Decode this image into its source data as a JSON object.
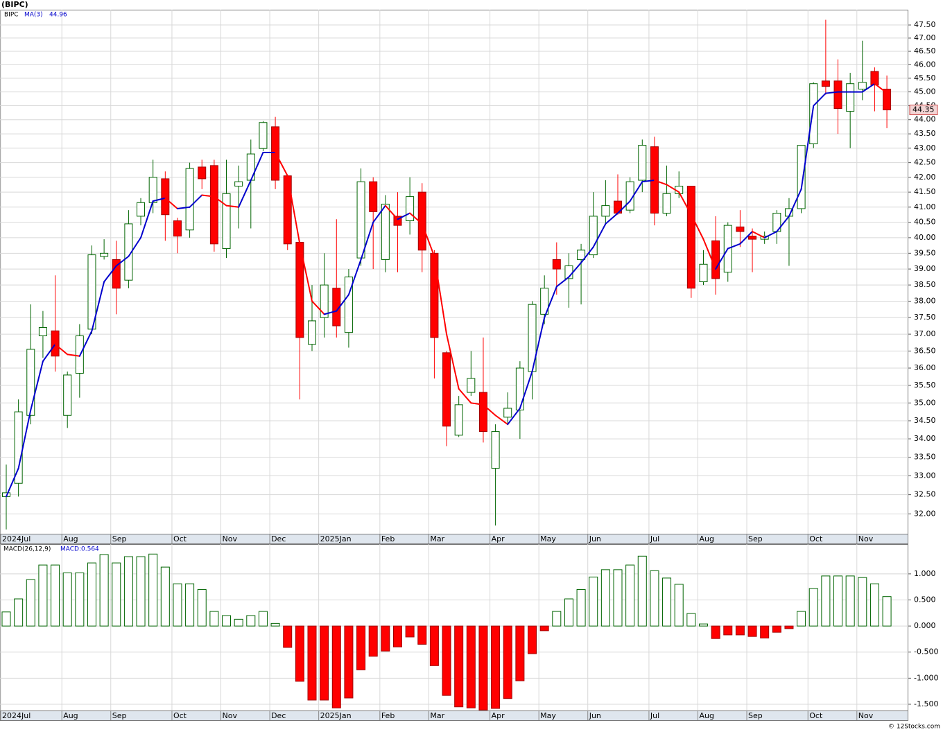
{
  "chart_data": [
    {
      "type": "candlestick",
      "title": "(BIPC)",
      "symbol": "BIPC",
      "log_scale": true,
      "grid": true,
      "up_color": "#006400",
      "down_color": "#ff0000",
      "ylim": [
        31.49,
        48.09
      ],
      "yticks": [
        {
          "value": 32,
          "label": "32.00"
        },
        {
          "value": 32.5,
          "label": "32.50"
        },
        {
          "value": 33,
          "label": "33.00"
        },
        {
          "value": 33.5,
          "label": "33.50"
        },
        {
          "value": 34,
          "label": "34.00"
        },
        {
          "value": 34.5,
          "label": "34.50"
        },
        {
          "value": 35,
          "label": "35.00"
        },
        {
          "value": 35.5,
          "label": "35.50"
        },
        {
          "value": 36,
          "label": "36.00"
        },
        {
          "value": 36.5,
          "label": "36.50"
        },
        {
          "value": 37,
          "label": "37.00"
        },
        {
          "value": 37.5,
          "label": "37.50"
        },
        {
          "value": 38,
          "label": "38.00"
        },
        {
          "value": 38.5,
          "label": "38.50"
        },
        {
          "value": 39,
          "label": "39.00"
        },
        {
          "value": 39.5,
          "label": "39.50"
        },
        {
          "value": 40,
          "label": "40.00"
        },
        {
          "value": 40.5,
          "label": "40.50"
        },
        {
          "value": 41,
          "label": "41.00"
        },
        {
          "value": 41.5,
          "label": "41.50"
        },
        {
          "value": 42,
          "label": "42.00"
        },
        {
          "value": 42.5,
          "label": "42.50"
        },
        {
          "value": 43,
          "label": "43.00"
        },
        {
          "value": 43.5,
          "label": "43.50"
        },
        {
          "value": 44,
          "label": "44.00"
        },
        {
          "value": 44.5,
          "label": "44.50"
        },
        {
          "value": 45,
          "label": "45.00"
        },
        {
          "value": 45.5,
          "label": "45.50"
        },
        {
          "value": 46,
          "label": "46.00"
        },
        {
          "value": 46.5,
          "label": "46.50"
        },
        {
          "value": 47,
          "label": "47.00"
        },
        {
          "value": 47.5,
          "label": "47.50"
        }
      ],
      "xticks": [
        {
          "value": 0,
          "label": "2024Jul"
        },
        {
          "value": 5,
          "label": "Aug"
        },
        {
          "value": 9,
          "label": "Sep"
        },
        {
          "value": 14,
          "label": "Oct"
        },
        {
          "value": 18,
          "label": "Nov"
        },
        {
          "value": 22,
          "label": "Dec"
        },
        {
          "value": 26,
          "label": "2025Jan"
        },
        {
          "value": 31,
          "label": "Feb"
        },
        {
          "value": 35,
          "label": "Mar"
        },
        {
          "value": 40,
          "label": "Apr"
        },
        {
          "value": 44,
          "label": "May"
        },
        {
          "value": 48,
          "label": "Jun"
        },
        {
          "value": 53,
          "label": "Jul"
        },
        {
          "value": 57,
          "label": "Aug"
        },
        {
          "value": 61,
          "label": "Sep"
        },
        {
          "value": 66,
          "label": "Oct"
        },
        {
          "value": 70,
          "label": "Nov"
        }
      ],
      "open": [
        32.45,
        32.8,
        34.65,
        36.95,
        37.1,
        34.65,
        35.85,
        37.15,
        39.4,
        39.3,
        38.65,
        40.7,
        41.15,
        41.95,
        40.55,
        40.25,
        42.35,
        42.4,
        39.65,
        41.7,
        41.9,
        42.99,
        43.75,
        42.05,
        39.85,
        36.7,
        37.5,
        38.4,
        37.05,
        39.35,
        41.85,
        39.3,
        40.7,
        40.55,
        41.5,
        39.5,
        36.45,
        34.1,
        35.3,
        35.3,
        33.2,
        34.6,
        34.8,
        35.9,
        37.6,
        39.3,
        38.7,
        39.3,
        39.45,
        40.7,
        41.2,
        40.9,
        41.9,
        43.05,
        40.8,
        41.45,
        41.7,
        38.6,
        39.9,
        38.9,
        40.35,
        40.05,
        39.95,
        40.2,
        40.7,
        40.95,
        43.15,
        45.4,
        45.4,
        44.3,
        45.1,
        45.75,
        45.1
      ],
      "high": [
        33.3,
        35.1,
        37.9,
        37.7,
        38.8,
        35.9,
        37.3,
        39.75,
        39.95,
        39.9,
        40.9,
        41.3,
        42.6,
        42.2,
        40.65,
        42.5,
        42.6,
        42.6,
        42.6,
        42.4,
        43.3,
        43.95,
        44.1,
        42.05,
        39.85,
        38.5,
        39.5,
        40.6,
        39.0,
        42.3,
        42.0,
        41.4,
        41.5,
        42.0,
        41.8,
        39.6,
        36.5,
        35.2,
        36.5,
        36.9,
        34.4,
        35.3,
        36.2,
        38.0,
        38.8,
        39.85,
        39.5,
        39.8,
        41.5,
        41.9,
        42.1,
        42.0,
        43.3,
        43.4,
        42.4,
        42.2,
        41.7,
        39.6,
        40.7,
        40.5,
        40.9,
        40.3,
        40.2,
        40.9,
        41.3,
        43.1,
        45.35,
        47.7,
        46.2,
        45.7,
        46.9,
        45.9,
        45.6
      ],
      "low": [
        31.6,
        32.45,
        34.4,
        36.3,
        35.9,
        34.3,
        35.15,
        37.0,
        39.3,
        37.6,
        38.4,
        40.4,
        40.8,
        39.9,
        39.5,
        40.0,
        41.6,
        39.55,
        39.35,
        40.3,
        40.3,
        42.9,
        41.6,
        39.6,
        35.1,
        36.5,
        36.9,
        36.9,
        36.6,
        39.1,
        39.0,
        38.9,
        38.9,
        40.1,
        38.9,
        35.7,
        33.8,
        34.05,
        35.2,
        33.9,
        31.7,
        34.4,
        34.0,
        35.1,
        37.3,
        38.2,
        37.8,
        37.9,
        39.35,
        40.4,
        40.75,
        40.8,
        41.5,
        40.4,
        40.7,
        41.3,
        38.1,
        38.5,
        38.2,
        38.6,
        39.7,
        38.9,
        39.8,
        39.8,
        39.1,
        40.8,
        43.0,
        44.9,
        43.5,
        43.0,
        44.7,
        44.3,
        43.7
      ],
      "close": [
        32.55,
        34.75,
        36.55,
        37.2,
        36.35,
        35.8,
        36.95,
        39.45,
        39.5,
        38.4,
        40.45,
        41.15,
        42.0,
        40.75,
        40.05,
        42.3,
        41.95,
        39.8,
        41.45,
        41.85,
        42.8,
        43.9,
        41.9,
        39.8,
        36.9,
        37.4,
        38.5,
        37.25,
        38.75,
        41.85,
        40.85,
        41.1,
        40.4,
        41.35,
        39.6,
        36.9,
        34.35,
        34.95,
        35.7,
        34.2,
        34.2,
        34.85,
        36.0,
        37.9,
        38.4,
        39.0,
        39.1,
        39.6,
        40.7,
        41.05,
        40.8,
        41.85,
        43.1,
        40.8,
        41.45,
        41.7,
        38.4,
        39.15,
        38.7,
        40.4,
        40.2,
        39.95,
        40.05,
        40.8,
        40.95,
        43.1,
        45.3,
        45.2,
        44.4,
        45.3,
        45.35,
        45.25,
        44.35
      ],
      "ma": {
        "name": "MA(3)",
        "up_color": "#0000cc",
        "down_color": "#ff0000",
        "values": [
          32.45,
          33.2,
          34.8,
          36.2,
          36.7,
          36.4,
          36.35,
          37.1,
          38.6,
          39.1,
          39.4,
          40.0,
          41.2,
          41.3,
          40.95,
          41.0,
          41.4,
          41.35,
          41.05,
          41.0,
          41.9,
          42.85,
          42.85,
          42.05,
          39.8,
          38.0,
          37.6,
          37.7,
          38.2,
          39.3,
          40.5,
          41.05,
          40.6,
          40.8,
          40.45,
          39.4,
          37.0,
          35.4,
          35.0,
          34.95,
          34.65,
          34.4,
          34.85,
          35.9,
          37.5,
          38.45,
          38.75,
          39.2,
          39.7,
          40.45,
          40.8,
          41.2,
          41.85,
          41.9,
          41.75,
          41.5,
          40.75,
          39.95,
          39.0,
          39.65,
          39.8,
          40.2,
          40.0,
          40.2,
          40.7,
          41.6,
          44.5,
          44.95,
          45.0,
          45.0,
          45.0,
          45.3,
          44.96
        ]
      }
    },
    {
      "type": "bar",
      "title": "MACD(26,12,9)",
      "current_prefix": "MACD:",
      "grid": true,
      "up_color": "#006400",
      "down_color": "#ff0000",
      "ylim": [
        -1.62,
        1.57
      ],
      "yticks": [
        {
          "value": -1.5,
          "label": "-1.500"
        },
        {
          "value": -1,
          "label": "-1.000"
        },
        {
          "value": -0.5,
          "label": "-0.500"
        },
        {
          "value": 0,
          "label": "0.000"
        },
        {
          "value": 0.5,
          "label": "0.500"
        },
        {
          "value": 1,
          "label": "1.000"
        }
      ],
      "xticks": [
        {
          "value": 0,
          "label": "2024Jul"
        },
        {
          "value": 5,
          "label": "Aug"
        },
        {
          "value": 9,
          "label": "Sep"
        },
        {
          "value": 14,
          "label": "Oct"
        },
        {
          "value": 18,
          "label": "Nov"
        },
        {
          "value": 22,
          "label": "Dec"
        },
        {
          "value": 26,
          "label": "2025Jan"
        },
        {
          "value": 31,
          "label": "Feb"
        },
        {
          "value": 35,
          "label": "Mar"
        },
        {
          "value": 40,
          "label": "Apr"
        },
        {
          "value": 44,
          "label": "May"
        },
        {
          "value": 48,
          "label": "Jun"
        },
        {
          "value": 53,
          "label": "Jul"
        },
        {
          "value": 57,
          "label": "Aug"
        },
        {
          "value": 61,
          "label": "Sep"
        },
        {
          "value": 66,
          "label": "Oct"
        },
        {
          "value": 70,
          "label": "Nov"
        }
      ],
      "values": [
        0.27,
        0.52,
        0.89,
        1.17,
        1.17,
        1.02,
        1.02,
        1.21,
        1.37,
        1.21,
        1.33,
        1.33,
        1.38,
        1.13,
        0.81,
        0.81,
        0.7,
        0.28,
        0.2,
        0.13,
        0.2,
        0.28,
        0.05,
        -0.41,
        -1.06,
        -1.42,
        -1.42,
        -1.57,
        -1.38,
        -0.84,
        -0.58,
        -0.48,
        -0.4,
        -0.21,
        -0.35,
        -0.76,
        -1.33,
        -1.55,
        -1.57,
        -1.61,
        -1.58,
        -1.39,
        -1.05,
        -0.53,
        -0.09,
        0.28,
        0.52,
        0.7,
        0.94,
        1.08,
        1.08,
        1.17,
        1.34,
        1.06,
        0.92,
        0.8,
        0.24,
        0.04,
        -0.24,
        -0.17,
        -0.17,
        -0.2,
        -0.23,
        -0.12,
        -0.05,
        0.28,
        0.72,
        0.96,
        0.96,
        0.96,
        0.93,
        0.81,
        0.564
      ]
    }
  ],
  "watermark": "© 12Stocks.com"
}
